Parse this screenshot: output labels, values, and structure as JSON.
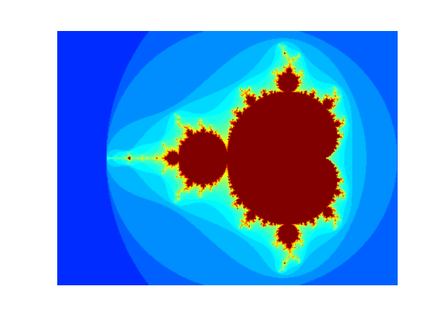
{
  "image": {
    "subject": "mandelbrot-set",
    "colormap": "jet",
    "colors": {
      "background": "#ffffff",
      "exterior_dark": "#000088",
      "interior": "#800000"
    },
    "complex_plane": {
      "real_range": [
        -2.5,
        1.0
      ],
      "imag_range": [
        -1.25,
        1.25
      ]
    },
    "max_iterations": 64
  }
}
